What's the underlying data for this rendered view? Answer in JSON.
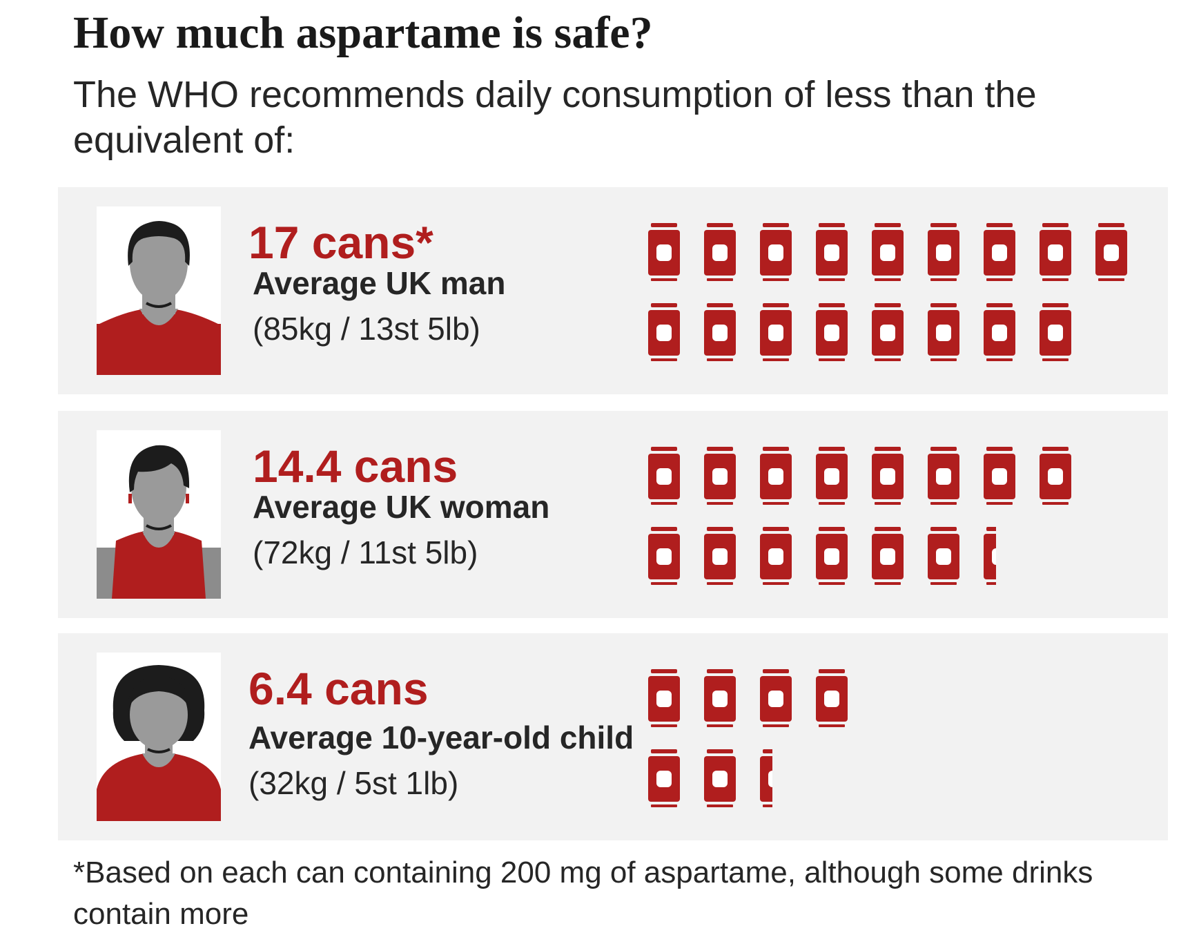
{
  "title": "How much aspartame is safe?",
  "subtitle": "The WHO recommends daily consumption of less than the equivalent of:",
  "footnote": "*Based on each can containing 200 mg of aspartame, although some drinks contain more",
  "colors": {
    "accent_red": "#b01e1e",
    "panel_background": "#f2f2f2",
    "avatar_grey": "#9a9a9a",
    "hair_dark": "#1c1c1c",
    "shoulder_grey": "#8c8c8c"
  },
  "groups": [
    {
      "stat": "17 cans*",
      "desc_bold": "Average UK man",
      "desc_rest": "(85kg / 13st 5lb)",
      "avatar_icon": "man-avatar-icon"
    },
    {
      "stat": "14.4 cans",
      "desc_bold": "Average UK woman",
      "desc_rest": "(72kg / 11st 5lb)",
      "avatar_icon": "woman-avatar-icon"
    },
    {
      "stat": "6.4 cans",
      "desc_bold": "Average 10-year-old child",
      "desc_rest": "(32kg / 5st 1lb)",
      "avatar_icon": "child-avatar-icon"
    }
  ],
  "chart_data": {
    "type": "pictogram",
    "unit_icon": "can-icon",
    "categories": [
      "Average UK man",
      "Average UK woman",
      "Average 10-year-old child"
    ],
    "values": [
      17,
      14.4,
      6.4
    ],
    "unit": "cans"
  }
}
